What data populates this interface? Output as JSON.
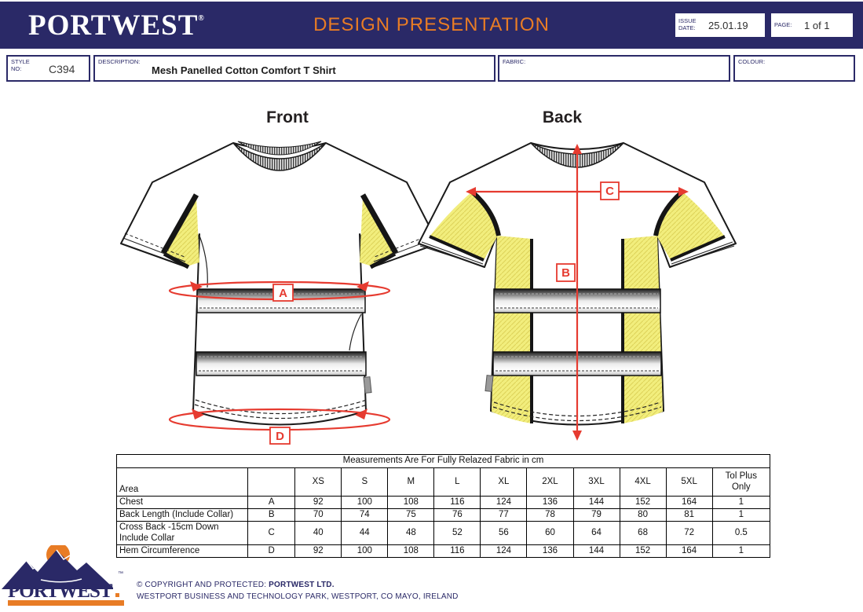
{
  "colors": {
    "navy": "#2a2967",
    "orange": "#e87c25",
    "red": "#e63b30",
    "hiviz_yellow": "#f2ee7d"
  },
  "header": {
    "brand": "PORTWEST",
    "brand_mark": "®",
    "title": "DESIGN PRESENTATION",
    "issue_date_label": "ISSUE DATE:",
    "issue_date": "25.01.19",
    "page_label": "PAGE:",
    "page": "1 of 1"
  },
  "info": {
    "style_label": "STYLE NO:",
    "style_no": "C394",
    "description_label": "DESCRIPTION:",
    "description": "Mesh Panelled Cotton Comfort T Shirt",
    "fabric_label": "FABRIC:",
    "colour_label": "COLOUR:"
  },
  "views": {
    "front_label": "Front",
    "back_label": "Back",
    "markers": {
      "a": "A",
      "b": "B",
      "c": "C",
      "d": "D"
    }
  },
  "table": {
    "title": "Measurements Are For Fully Relazed Fabric in cm",
    "area_label": "Area",
    "sizes": [
      "XS",
      "S",
      "M",
      "L",
      "XL",
      "2XL",
      "3XL",
      "4XL",
      "5XL"
    ],
    "tol_label": "Tol Plus Only",
    "rows": [
      {
        "area": "Chest",
        "letter": "A",
        "values": [
          92,
          100,
          108,
          116,
          124,
          136,
          144,
          152,
          164
        ],
        "tol": "1"
      },
      {
        "area": "Back Length (Include Collar)",
        "letter": "B",
        "values": [
          70,
          74,
          75,
          76,
          77,
          78,
          79,
          80,
          81
        ],
        "tol": "1"
      },
      {
        "area": "Cross Back -15cm Down Include Collar",
        "letter": "C",
        "values": [
          40,
          44,
          48,
          52,
          56,
          60,
          64,
          68,
          72
        ],
        "tol": "0.5",
        "tall": true
      },
      {
        "area": "Hem Circumference",
        "letter": "D",
        "values": [
          92,
          100,
          108,
          116,
          124,
          136,
          144,
          152,
          164
        ],
        "tol": "1"
      }
    ]
  },
  "footer": {
    "logo_text": "PORTWEST",
    "logo_tm": "™",
    "copyright_prefix": "© COPYRIGHT AND PROTECTED: ",
    "copyright_company": "PORTWEST LTD.",
    "address": "WESTPORT BUSINESS AND TECHNOLOGY PARK, WESTPORT, CO MAYO, IRELAND"
  }
}
